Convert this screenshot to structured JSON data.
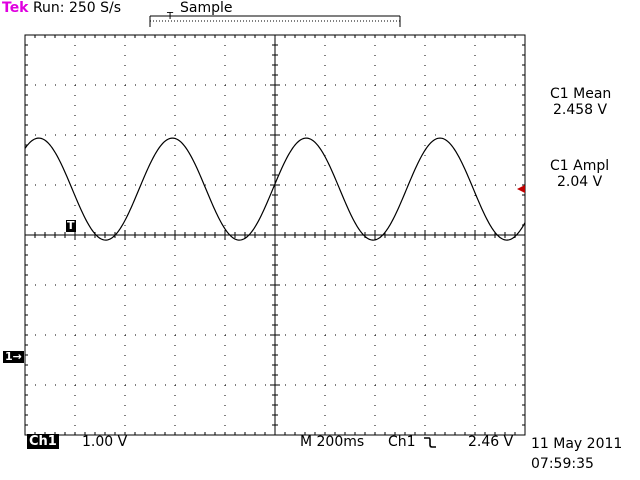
{
  "header": {
    "brand": "Tek",
    "run_status": "Run: 250 S/s",
    "acq_mode": "Sample",
    "trigger_position_marker": "T"
  },
  "measurements": [
    {
      "label": "C1 Mean",
      "value": "2.458 V"
    },
    {
      "label": "C1 Ampl",
      "value": "2.04 V"
    }
  ],
  "markers": {
    "trigger": "T",
    "channel_ground": "1→"
  },
  "footer": {
    "channel": "Ch1",
    "volts_per_div": "1.00 V",
    "timebase": "M 200ms",
    "trigger_source": "Ch1",
    "trigger_slope_icon": "falling-edge-icon",
    "trigger_level": "2.46 V",
    "date": "11 May 2011",
    "time": "07:59:35"
  },
  "chart_data": {
    "type": "line",
    "grid": true,
    "x_divisions": 10,
    "y_divisions": 8,
    "xlim": [
      0,
      2000
    ],
    "ylim": [
      -2.46,
      5.54
    ],
    "series": [
      {
        "waveform": "sine",
        "mean": 2.458,
        "amplitude_pp": 2.04,
        "period_ms": 535,
        "peak_time_ms": 55
      }
    ]
  }
}
